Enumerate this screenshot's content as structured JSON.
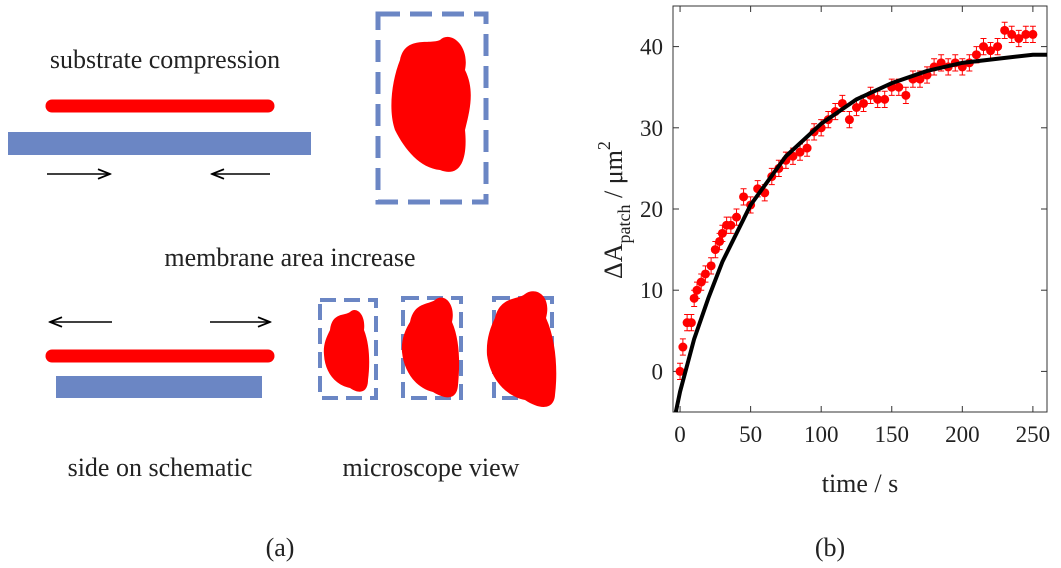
{
  "schematic": {
    "top_label": "substrate compression",
    "middle_label": "membrane area increase",
    "left_caption": "side on schematic",
    "right_caption": "microscope view"
  },
  "panel_labels": [
    "(a)",
    "(b)"
  ],
  "chart_data": {
    "type": "scatter",
    "xlabel": "time / s",
    "ylabel": {
      "main": "ΔA",
      "sub": "patch",
      "unit": " / μm",
      "sup": "2"
    },
    "xlim": [
      -5,
      260
    ],
    "ylim": [
      -5,
      45
    ],
    "xticks": [
      0,
      50,
      100,
      150,
      200,
      250
    ],
    "yticks": [
      0,
      10,
      20,
      30,
      40
    ],
    "points": {
      "color": "#ff0000",
      "x": [
        0,
        2,
        5,
        8,
        10,
        12,
        15,
        18,
        22,
        25,
        28,
        30,
        33,
        36,
        40,
        45,
        50,
        55,
        60,
        65,
        70,
        75,
        80,
        85,
        90,
        95,
        100,
        105,
        110,
        115,
        120,
        125,
        130,
        135,
        140,
        145,
        150,
        155,
        160,
        165,
        170,
        175,
        180,
        185,
        190,
        195,
        200,
        205,
        210,
        215,
        220,
        225,
        230,
        235,
        240,
        245,
        250
      ],
      "values": [
        0,
        3,
        6,
        6,
        9,
        10,
        11,
        12,
        13,
        15,
        16,
        17,
        18,
        18,
        19,
        21.5,
        20.5,
        22.5,
        22,
        24,
        25,
        26,
        26.5,
        27,
        27.5,
        29.5,
        30,
        31,
        32,
        33,
        31,
        32.5,
        33,
        34,
        33.5,
        33.5,
        35,
        35,
        34,
        36,
        36,
        36.5,
        37.5,
        38,
        37.5,
        38,
        37.5,
        38,
        39,
        40,
        39.5,
        40,
        42,
        41.5,
        41,
        41.5,
        41.5
      ],
      "errors": [
        1,
        1,
        1,
        1,
        1,
        1,
        1,
        1,
        1,
        1,
        1,
        1,
        1,
        1,
        1,
        1,
        1,
        1,
        1,
        1,
        1,
        1,
        1,
        1,
        1,
        1,
        1,
        1,
        1,
        1,
        1,
        1,
        1,
        1,
        1,
        1,
        1,
        1,
        1,
        1,
        1,
        1,
        1,
        1,
        1,
        1,
        1,
        1,
        1,
        1,
        1,
        1,
        1,
        1,
        1,
        1,
        1
      ]
    },
    "fit": {
      "color": "#000000",
      "x": [
        -3,
        0,
        10,
        20,
        30,
        50,
        75,
        100,
        125,
        150,
        175,
        200,
        225,
        250,
        260
      ],
      "values": [
        -5,
        -2.5,
        4,
        9,
        13.5,
        20.5,
        26.5,
        30.5,
        33.5,
        35.5,
        37,
        38,
        38.5,
        39,
        39
      ]
    }
  }
}
